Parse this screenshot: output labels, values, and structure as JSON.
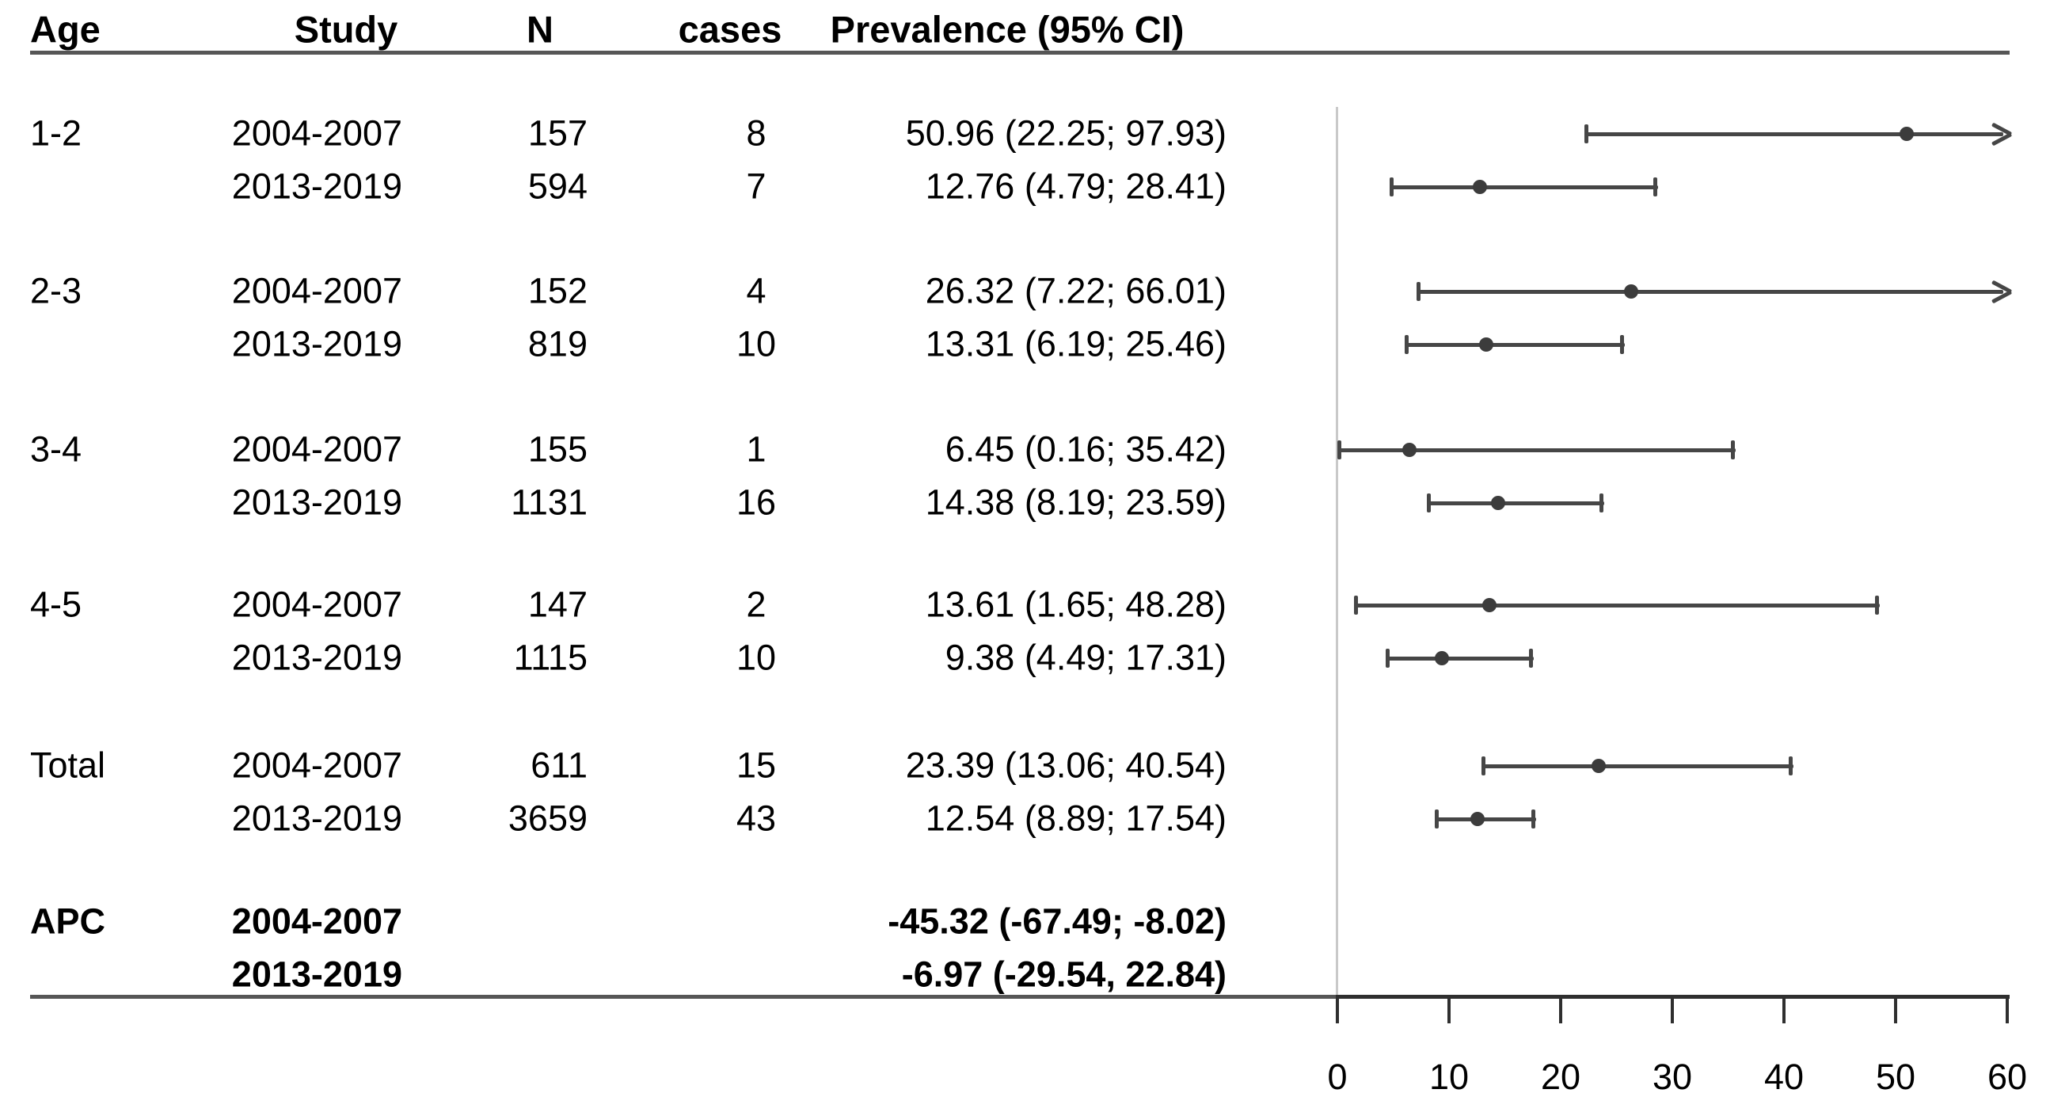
{
  "header": {
    "age": "Age",
    "study": "Study",
    "n": "N",
    "cases": "cases",
    "prevalence": "Prevalence (95% CI)"
  },
  "colors": {
    "text": "#000000",
    "rule": "#565656",
    "axis": "#2f2f2f",
    "reference_line": "#c9c9c9",
    "ci_bar": "#464646",
    "point": "#3c3c3c"
  },
  "chart_data": {
    "type": "forest",
    "title": "",
    "xlabel": "",
    "x_axis": {
      "min": 0,
      "max": 60,
      "ticks": [
        0,
        10,
        20,
        30,
        40,
        50,
        60
      ]
    },
    "reference_line_value": 0,
    "rows": [
      {
        "age": "1-2",
        "study": "2004-2007",
        "n": "157",
        "cases": "8",
        "prevalence": "50.96 (22.25; 97.93)",
        "est": 50.96,
        "lo": 22.25,
        "hi": 97.93
      },
      {
        "age": "",
        "study": "2013-2019",
        "n": "594",
        "cases": "7",
        "prevalence": "12.76 (4.79; 28.41)",
        "est": 12.76,
        "lo": 4.79,
        "hi": 28.41
      },
      {
        "age": "2-3",
        "study": "2004-2007",
        "n": "152",
        "cases": "4",
        "prevalence": "26.32 (7.22; 66.01)",
        "est": 26.32,
        "lo": 7.22,
        "hi": 66.01
      },
      {
        "age": "",
        "study": "2013-2019",
        "n": "819",
        "cases": "10",
        "prevalence": "13.31 (6.19; 25.46)",
        "est": 13.31,
        "lo": 6.19,
        "hi": 25.46
      },
      {
        "age": "3-4",
        "study": "2004-2007",
        "n": "155",
        "cases": "1",
        "prevalence": "6.45 (0.16; 35.42)",
        "est": 6.45,
        "lo": 0.16,
        "hi": 35.42
      },
      {
        "age": "",
        "study": "2013-2019",
        "n": "1131",
        "cases": "16",
        "prevalence": "14.38 (8.19; 23.59)",
        "est": 14.38,
        "lo": 8.19,
        "hi": 23.59
      },
      {
        "age": "4-5",
        "study": "2004-2007",
        "n": "147",
        "cases": "2",
        "prevalence": "13.61 (1.65; 48.28)",
        "est": 13.61,
        "lo": 1.65,
        "hi": 48.28
      },
      {
        "age": "",
        "study": "2013-2019",
        "n": "1115",
        "cases": "10",
        "prevalence": "9.38 (4.49; 17.31)",
        "est": 9.38,
        "lo": 4.49,
        "hi": 17.31
      },
      {
        "age": "Total",
        "study": "2004-2007",
        "n": "611",
        "cases": "15",
        "prevalence": "23.39 (13.06; 40.54)",
        "est": 23.39,
        "lo": 13.06,
        "hi": 40.54
      },
      {
        "age": "",
        "study": "2013-2019",
        "n": "3659",
        "cases": "43",
        "prevalence": "12.54 (8.89; 17.54)",
        "est": 12.54,
        "lo": 8.89,
        "hi": 17.54
      }
    ],
    "apc_rows": [
      {
        "age": "APC",
        "study": "2004-2007",
        "value": "-45.32 (-67.49; -8.02)"
      },
      {
        "age": "",
        "study": "2013-2019",
        "value": "-6.97 (-29.54, 22.84)"
      }
    ]
  }
}
